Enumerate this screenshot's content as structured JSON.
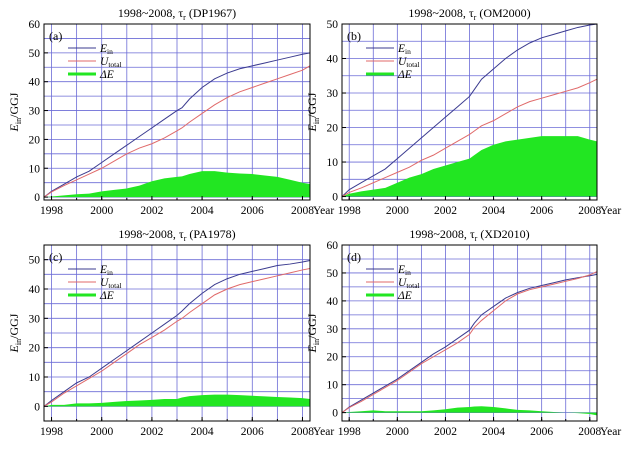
{
  "chart_data": [
    {
      "type": "line",
      "panel_label": "(a)",
      "title": "1998~2008, τ",
      "title_sub": "r",
      "title_paren": "(DP1967)",
      "ylabel": "E",
      "ylabel_sub": "in",
      "ylabel_unit": "/GGJ",
      "xlabel": "Year",
      "xlim": [
        1997.7,
        2008.3
      ],
      "ylim": [
        -1,
        60
      ],
      "x_ticks": [
        "1998",
        "2000",
        "2002",
        "2004",
        "2006",
        "2008"
      ],
      "y_ticks": [
        "0",
        "10",
        "20",
        "30",
        "40",
        "50",
        "60"
      ],
      "y_tick_values": [
        0,
        10,
        20,
        30,
        40,
        50,
        60
      ],
      "legend": {
        "placement": "top-left",
        "entries": [
          {
            "main": "E",
            "sub": "in"
          },
          {
            "main": "U",
            "sub": "total"
          },
          {
            "main": "ΔE",
            "sub": ""
          }
        ]
      },
      "grid": true,
      "x": [
        1997.7,
        1998.0,
        1998.5,
        1999.0,
        1999.5,
        2000.0,
        2000.5,
        2001.0,
        2001.5,
        2002.0,
        2002.5,
        2003.0,
        2003.2,
        2003.5,
        2004.0,
        2004.5,
        2005.0,
        2005.5,
        2006.0,
        2006.5,
        2007.0,
        2007.5,
        2008.0,
        2008.3
      ],
      "series": [
        {
          "name": "E_in",
          "color": "#3b3b8f",
          "kind": "line",
          "values": [
            0,
            2,
            4.5,
            7,
            9,
            12,
            15,
            18,
            21,
            24,
            27,
            30,
            31,
            34,
            38,
            41,
            43,
            44.5,
            45.5,
            46.5,
            47.5,
            48.5,
            49.5,
            50
          ]
        },
        {
          "name": "U_total",
          "color": "#e06a6a",
          "kind": "line",
          "values": [
            0,
            1.8,
            4,
            6,
            8,
            10,
            12.5,
            15,
            17,
            18.5,
            20.5,
            23,
            24,
            26,
            29,
            32,
            34.5,
            36.5,
            38,
            39.5,
            41,
            42.5,
            44,
            45.5
          ]
        },
        {
          "name": "ΔE",
          "color": "#22e622",
          "kind": "area",
          "values": [
            0,
            0.2,
            0.6,
            1,
            1.2,
            2,
            2.5,
            3,
            4,
            5.5,
            6.5,
            7,
            7.2,
            8,
            9,
            9,
            8.5,
            8.2,
            8,
            7.5,
            7,
            6,
            5,
            4.5
          ]
        }
      ]
    },
    {
      "type": "line",
      "panel_label": "(b)",
      "title": "1998~2008, τ",
      "title_sub": "r",
      "title_paren": "(OM2000)",
      "ylabel": "E",
      "ylabel_sub": "in",
      "ylabel_unit": "/GGJ",
      "xlabel": "Year",
      "xlim": [
        1997.7,
        2008.3
      ],
      "ylim": [
        -1,
        50
      ],
      "x_ticks": [
        "1998",
        "2000",
        "2002",
        "2004",
        "2006",
        "2008"
      ],
      "y_ticks": [
        "0",
        "10",
        "20",
        "30",
        "40",
        "50"
      ],
      "y_tick_values": [
        0,
        10,
        20,
        30,
        40,
        50
      ],
      "legend": {
        "placement": "top-left",
        "entries": [
          {
            "main": "E",
            "sub": "in"
          },
          {
            "main": "U",
            "sub": "total"
          },
          {
            "main": "ΔE",
            "sub": ""
          }
        ]
      },
      "grid": true,
      "x": [
        1997.7,
        1998.0,
        1998.5,
        1999.0,
        1999.5,
        2000.0,
        2000.5,
        2001.0,
        2001.5,
        2002.0,
        2002.5,
        2003.0,
        2003.2,
        2003.5,
        2004.0,
        2004.5,
        2005.0,
        2005.5,
        2006.0,
        2006.5,
        2007.0,
        2007.5,
        2008.0,
        2008.3
      ],
      "series": [
        {
          "name": "E_in",
          "color": "#3b3b8f",
          "kind": "line",
          "values": [
            0,
            2,
            4,
            6,
            8,
            11,
            14,
            17,
            20,
            23,
            26,
            29,
            31,
            34,
            37,
            40,
            42.5,
            44.5,
            46,
            47,
            48,
            49,
            49.7,
            50
          ]
        },
        {
          "name": "U_total",
          "color": "#e06a6a",
          "kind": "line",
          "values": [
            0,
            1.2,
            2.5,
            4,
            5.5,
            7,
            8.5,
            10.5,
            12,
            14,
            16,
            18,
            19,
            20.5,
            22,
            24,
            26,
            27.5,
            28.5,
            29.5,
            30.5,
            31.5,
            33,
            34
          ]
        },
        {
          "name": "ΔE",
          "color": "#22e622",
          "kind": "area",
          "values": [
            0,
            0.8,
            1.5,
            2,
            2.5,
            4,
            5.5,
            6.5,
            8,
            9,
            10,
            11,
            12,
            13.5,
            15,
            16,
            16.5,
            17,
            17.5,
            17.5,
            17.5,
            17.5,
            16.5,
            16
          ]
        }
      ]
    },
    {
      "type": "line",
      "panel_label": "(c)",
      "title": "1998~2008, τ",
      "title_sub": "r",
      "title_paren": "(PA1978)",
      "ylabel": "E",
      "ylabel_sub": "in",
      "ylabel_unit": "/GGJ",
      "xlabel": "Year",
      "xlim": [
        1997.7,
        2008.3
      ],
      "ylim": [
        -5,
        55
      ],
      "x_ticks": [
        "1998",
        "2000",
        "2002",
        "2004",
        "2006",
        "2008"
      ],
      "y_ticks": [
        "0",
        "10",
        "20",
        "30",
        "40",
        "50"
      ],
      "y_tick_values": [
        0,
        10,
        20,
        30,
        40,
        50
      ],
      "legend": {
        "placement": "top-left",
        "entries": [
          {
            "main": "E",
            "sub": "in"
          },
          {
            "main": "U",
            "sub": "total"
          },
          {
            "main": "ΔE",
            "sub": ""
          }
        ]
      },
      "grid": true,
      "x": [
        1997.7,
        1998.0,
        1998.5,
        1999.0,
        1999.5,
        2000.0,
        2000.5,
        2001.0,
        2001.5,
        2002.0,
        2002.5,
        2003.0,
        2003.2,
        2003.5,
        2004.0,
        2004.5,
        2005.0,
        2005.5,
        2006.0,
        2006.5,
        2007.0,
        2007.5,
        2008.0,
        2008.3
      ],
      "series": [
        {
          "name": "E_in",
          "color": "#3b3b8f",
          "kind": "line",
          "values": [
            0,
            2,
            5,
            8,
            10,
            13,
            16,
            19,
            22,
            25,
            28,
            31,
            32.5,
            35,
            38.5,
            41.5,
            43.5,
            45,
            46,
            47,
            48,
            48.5,
            49.2,
            49.7
          ]
        },
        {
          "name": "U_total",
          "color": "#e06a6a",
          "kind": "line",
          "values": [
            0,
            1.5,
            4.5,
            7,
            9.5,
            12,
            15,
            18,
            21,
            23.5,
            26,
            29,
            30,
            32,
            35,
            38,
            40,
            41.5,
            42.5,
            43.5,
            44.5,
            45.5,
            46.5,
            47
          ]
        },
        {
          "name": "ΔE",
          "color": "#22e622",
          "kind": "area",
          "values": [
            0,
            0.5,
            0.5,
            1,
            1,
            1.2,
            1.5,
            1.8,
            2,
            2.2,
            2.5,
            2.5,
            3,
            3.5,
            3.8,
            4,
            4,
            3.8,
            3.6,
            3.4,
            3.2,
            3,
            2.8,
            2.5
          ]
        }
      ]
    },
    {
      "type": "line",
      "panel_label": "(d)",
      "title": "1998~2008, τ",
      "title_sub": "r",
      "title_paren": "(XD2010)",
      "ylabel": "E",
      "ylabel_sub": "in",
      "ylabel_unit": "/GGJ",
      "xlabel": "Year",
      "xlim": [
        1997.7,
        2008.3
      ],
      "ylim": [
        -3,
        60
      ],
      "x_ticks": [
        "1998",
        "2000",
        "2002",
        "2004",
        "2006",
        "2008"
      ],
      "y_ticks": [
        "0",
        "10",
        "20",
        "30",
        "40",
        "50",
        "60"
      ],
      "y_tick_values": [
        0,
        10,
        20,
        30,
        40,
        50,
        60
      ],
      "legend": {
        "placement": "top-left",
        "entries": [
          {
            "main": "E",
            "sub": "in"
          },
          {
            "main": "U",
            "sub": "total"
          },
          {
            "main": "ΔE",
            "sub": ""
          }
        ]
      },
      "grid": true,
      "x": [
        1997.7,
        1998.0,
        1998.5,
        1999.0,
        1999.5,
        2000.0,
        2000.5,
        2001.0,
        2001.5,
        2002.0,
        2002.5,
        2003.0,
        2003.2,
        2003.5,
        2004.0,
        2004.5,
        2005.0,
        2005.5,
        2006.0,
        2006.5,
        2007.0,
        2007.5,
        2008.0,
        2008.3
      ],
      "series": [
        {
          "name": "E_in",
          "color": "#3b3b8f",
          "kind": "line",
          "values": [
            0,
            2,
            4.5,
            7,
            9.5,
            12,
            15,
            18,
            21,
            23.5,
            26.5,
            29.5,
            32,
            35,
            38,
            41,
            43,
            44.5,
            45.5,
            46.5,
            47.5,
            48.3,
            49,
            49.5
          ]
        },
        {
          "name": "U_total",
          "color": "#e06a6a",
          "kind": "line",
          "values": [
            0,
            1.8,
            4,
            6.5,
            9,
            11.5,
            14.5,
            17.5,
            20,
            22.5,
            25,
            28,
            30.5,
            33,
            36.5,
            40,
            42.5,
            44,
            45,
            46,
            47,
            48,
            49.3,
            50.5
          ]
        },
        {
          "name": "ΔE",
          "color": "#22e622",
          "kind": "area",
          "values": [
            0,
            0.2,
            0.5,
            0.8,
            0.5,
            0.5,
            0.5,
            0.5,
            0.8,
            1.2,
            1.8,
            2,
            2.2,
            2.3,
            2,
            1.5,
            1,
            0.8,
            0.5,
            0.2,
            0,
            -0.2,
            -0.5,
            -1
          ]
        }
      ]
    }
  ]
}
